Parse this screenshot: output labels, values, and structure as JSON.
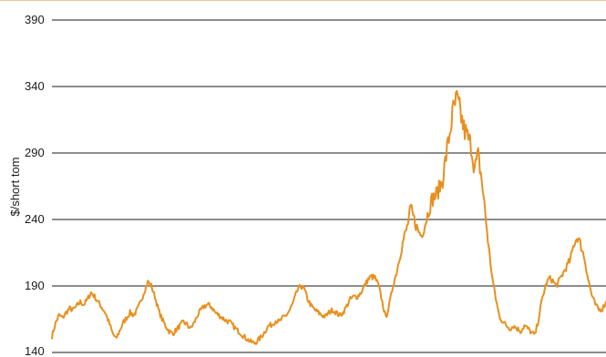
{
  "chart_data": {
    "type": "line",
    "title": "",
    "xlabel": "",
    "ylabel": "$/short tom",
    "ylim": [
      140,
      390
    ],
    "yticks": [
      140,
      190,
      240,
      290,
      340,
      390
    ],
    "grid": true,
    "legend": "none",
    "series": [
      {
        "color": "#e8901e",
        "y": [
          152,
          162,
          168,
          166,
          170,
          173,
          172,
          175,
          178,
          176,
          180,
          185,
          182,
          178,
          174,
          170,
          163,
          155,
          150,
          156,
          162,
          166,
          170,
          168,
          172,
          178,
          186,
          193,
          190,
          182,
          172,
          165,
          160,
          156,
          154,
          157,
          160,
          163,
          161,
          158,
          162,
          168,
          172,
          175,
          176,
          174,
          170,
          168,
          166,
          164,
          163,
          160,
          157,
          155,
          152,
          150,
          148,
          147,
          149,
          152,
          156,
          160,
          161,
          164,
          163,
          166,
          168,
          172,
          178,
          186,
          190,
          188,
          180,
          175,
          172,
          170,
          168,
          167,
          170,
          172,
          170,
          168,
          170,
          175,
          180,
          182,
          182,
          185,
          190,
          195,
          197,
          196,
          190,
          178,
          166,
          176,
          190,
          200,
          213,
          225,
          234,
          248,
          240,
          232,
          228,
          236,
          246,
          255,
          258,
          263,
          270,
          288,
          305,
          322,
          330,
          320,
          308,
          302,
          296,
          278,
          288,
          270,
          245,
          218,
          196,
          180,
          167,
          163,
          160,
          158,
          160,
          158,
          156,
          160,
          158,
          155,
          153,
          165,
          180,
          190,
          196,
          194,
          190,
          195,
          200,
          205,
          210,
          222,
          227,
          220,
          210,
          195,
          183,
          176,
          172,
          173,
          178
        ]
      }
    ]
  }
}
